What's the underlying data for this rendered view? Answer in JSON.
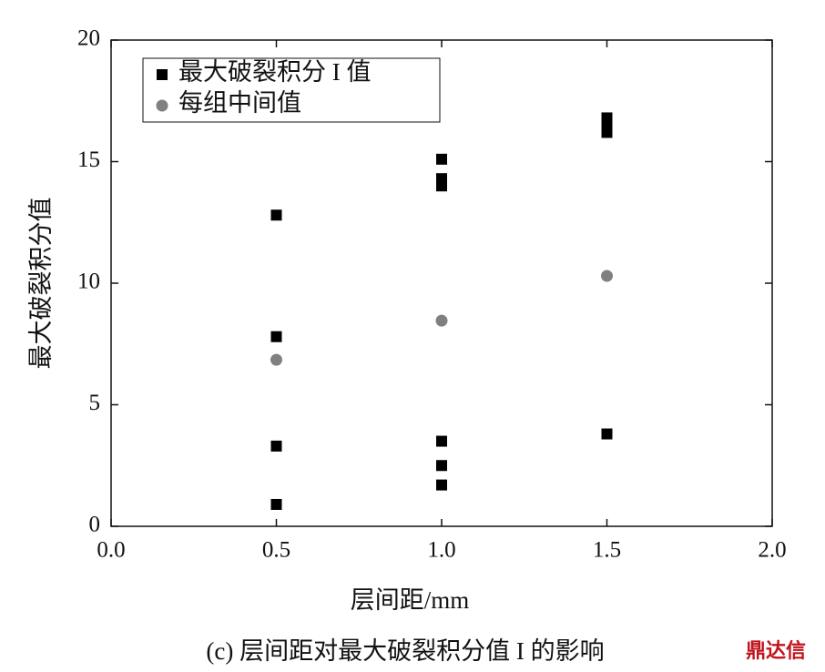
{
  "chart_data": {
    "type": "scatter",
    "x_label": "层间距/mm",
    "y_label": "最大破裂积分值",
    "caption": "(c) 层间距对最大破裂积分值 I 的影响",
    "watermark": "鼎达信",
    "xlim": [
      0,
      2
    ],
    "ylim": [
      0,
      20
    ],
    "xticks": [
      {
        "value": 0,
        "label": "0.0"
      },
      {
        "value": 0.5,
        "label": "0.5"
      },
      {
        "value": 1,
        "label": "1.0"
      },
      {
        "value": 1.5,
        "label": "1.5"
      },
      {
        "value": 2,
        "label": "2.0"
      }
    ],
    "yticks": [
      0,
      5,
      10,
      15,
      20
    ],
    "legend": "upper left",
    "series": [
      {
        "name": "最大破裂积分 I 值",
        "color": "#000000",
        "marker": "square",
        "x": [
          0.5,
          0.5,
          0.5,
          0.5,
          1,
          1,
          1,
          1,
          1,
          1,
          1.5,
          1.5,
          1.5,
          1.5
        ],
        "values": [
          12.8,
          7.8,
          3.3,
          0.9,
          15.1,
          14.3,
          14.0,
          3.5,
          2.5,
          1.7,
          16.8,
          16.5,
          16.2,
          3.8
        ]
      },
      {
        "name": "每组中间值",
        "color": "#808080",
        "marker": "circle",
        "x": [
          0.5,
          1,
          1.5
        ],
        "values": [
          6.85,
          8.46,
          10.3
        ]
      }
    ]
  }
}
